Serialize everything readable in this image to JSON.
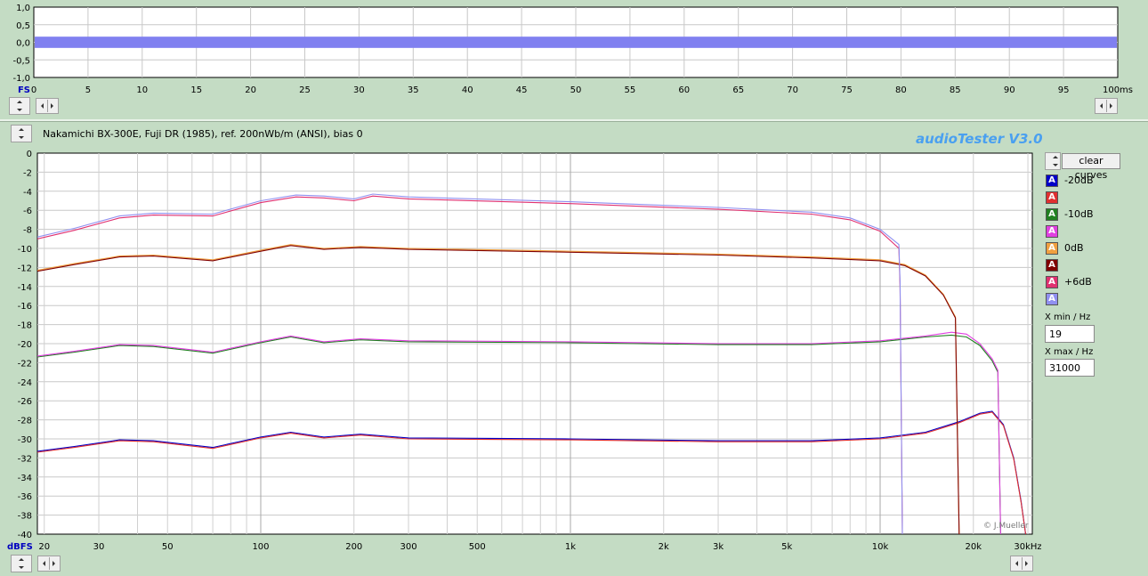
{
  "waveform": {
    "y_labels": [
      "1,0",
      "0,5",
      "0,0",
      "-0,5",
      "-1,0"
    ],
    "y_unit": "FS",
    "x_labels": [
      "0",
      "5",
      "10",
      "15",
      "20",
      "25",
      "30",
      "35",
      "40",
      "45",
      "50",
      "55",
      "60",
      "65",
      "70",
      "75",
      "80",
      "85",
      "90",
      "95",
      "100ms"
    ],
    "amplitude": 0.1,
    "color": "#8080f0"
  },
  "info_text": "Nakamichi BX-300E, Fuji DR (1985), ref. 200nWb/m (ANSI), bias 0",
  "brand": "audioTester  V3.0",
  "copyright": "© J.Mueller",
  "controls": {
    "clear_label": "clear curves",
    "xmin_label": "X min / Hz",
    "xmin_value": "19",
    "xmax_label": "X max / Hz",
    "xmax_value": "31000"
  },
  "legend": [
    {
      "label": "-20dB",
      "color": "#0000c8",
      "glyph": "A"
    },
    {
      "label": "",
      "color": "#e03030",
      "glyph": "A"
    },
    {
      "label": "-10dB",
      "color": "#208020",
      "glyph": "A"
    },
    {
      "label": "",
      "color": "#e040e0",
      "glyph": "A"
    },
    {
      "label": "0dB",
      "color": "#f0a040",
      "glyph": "A"
    },
    {
      "label": "",
      "color": "#800000",
      "glyph": "A"
    },
    {
      "label": "+6dB",
      "color": "#e03070",
      "glyph": "A"
    },
    {
      "label": "",
      "color": "#9090f0",
      "glyph": "A"
    }
  ],
  "chart_data": {
    "type": "line",
    "x_scale": "log",
    "xlim": [
      19,
      31000
    ],
    "ylim": [
      -40,
      0
    ],
    "grid": true,
    "ylabel": "dBFS",
    "xlabel_unit": "kHz",
    "y_ticks": [
      "0",
      "-2",
      "-4",
      "-6",
      "-8",
      "-10",
      "-12",
      "-14",
      "-16",
      "-18",
      "-20",
      "-22",
      "-24",
      "-26",
      "-28",
      "-30",
      "-32",
      "-34",
      "-36",
      "-38",
      "-40"
    ],
    "x_ticks": [
      {
        "v": 20,
        "label": "20"
      },
      {
        "v": 30,
        "label": "30"
      },
      {
        "v": 50,
        "label": "50"
      },
      {
        "v": 100,
        "label": "100"
      },
      {
        "v": 200,
        "label": "200"
      },
      {
        "v": 300,
        "label": "300"
      },
      {
        "v": 500,
        "label": "500"
      },
      {
        "v": 1000,
        "label": "1k"
      },
      {
        "v": 2000,
        "label": "2k"
      },
      {
        "v": 3000,
        "label": "3k"
      },
      {
        "v": 5000,
        "label": "5k"
      },
      {
        "v": 10000,
        "label": "10k"
      },
      {
        "v": 20000,
        "label": "20k"
      },
      {
        "v": 30000,
        "label": "30kHz"
      }
    ],
    "series": [
      {
        "name": "-20dB",
        "color": "#0000c8",
        "points": [
          [
            19,
            -31.3
          ],
          [
            25,
            -30.8
          ],
          [
            35,
            -30.1
          ],
          [
            45,
            -30.2
          ],
          [
            70,
            -30.9
          ],
          [
            100,
            -29.8
          ],
          [
            125,
            -29.3
          ],
          [
            160,
            -29.8
          ],
          [
            210,
            -29.5
          ],
          [
            300,
            -29.9
          ],
          [
            1000,
            -30.0
          ],
          [
            3000,
            -30.2
          ],
          [
            6000,
            -30.2
          ],
          [
            10000,
            -29.9
          ],
          [
            14000,
            -29.3
          ],
          [
            18000,
            -28.2
          ],
          [
            21000,
            -27.3
          ],
          [
            23000,
            -27.1
          ],
          [
            25000,
            -28.5
          ],
          [
            27000,
            -32.0
          ],
          [
            28500,
            -36.5
          ],
          [
            29500,
            -40.0
          ]
        ]
      },
      {
        "name": "",
        "color": "#e03030",
        "points": [
          [
            19,
            -31.4
          ],
          [
            25,
            -30.9
          ],
          [
            35,
            -30.2
          ],
          [
            45,
            -30.3
          ],
          [
            70,
            -31.0
          ],
          [
            100,
            -29.9
          ],
          [
            125,
            -29.4
          ],
          [
            160,
            -29.9
          ],
          [
            210,
            -29.6
          ],
          [
            300,
            -30.0
          ],
          [
            1000,
            -30.1
          ],
          [
            3000,
            -30.3
          ],
          [
            6000,
            -30.3
          ],
          [
            10000,
            -30.0
          ],
          [
            14000,
            -29.4
          ],
          [
            18000,
            -28.3
          ],
          [
            21000,
            -27.4
          ],
          [
            23000,
            -27.2
          ],
          [
            25000,
            -28.6
          ],
          [
            27000,
            -32.1
          ],
          [
            28500,
            -36.6
          ],
          [
            29500,
            -40.0
          ]
        ]
      },
      {
        "name": "-10dB",
        "color": "#208020",
        "points": [
          [
            19,
            -21.4
          ],
          [
            25,
            -20.9
          ],
          [
            35,
            -20.2
          ],
          [
            45,
            -20.3
          ],
          [
            70,
            -21.0
          ],
          [
            100,
            -19.9
          ],
          [
            125,
            -19.3
          ],
          [
            160,
            -19.9
          ],
          [
            210,
            -19.6
          ],
          [
            300,
            -19.8
          ],
          [
            1000,
            -19.9
          ],
          [
            3000,
            -20.1
          ],
          [
            6000,
            -20.1
          ],
          [
            10000,
            -19.8
          ],
          [
            14000,
            -19.3
          ],
          [
            17000,
            -19.1
          ],
          [
            19000,
            -19.3
          ],
          [
            21000,
            -20.2
          ],
          [
            23000,
            -21.8
          ],
          [
            24000,
            -23.0
          ],
          [
            24500,
            -40.0
          ]
        ]
      },
      {
        "name": "",
        "color": "#e040e0",
        "points": [
          [
            19,
            -21.3
          ],
          [
            25,
            -20.8
          ],
          [
            35,
            -20.1
          ],
          [
            45,
            -20.2
          ],
          [
            70,
            -20.9
          ],
          [
            100,
            -19.8
          ],
          [
            125,
            -19.2
          ],
          [
            160,
            -19.8
          ],
          [
            210,
            -19.5
          ],
          [
            300,
            -19.7
          ],
          [
            1000,
            -19.8
          ],
          [
            3000,
            -20.0
          ],
          [
            6000,
            -20.0
          ],
          [
            10000,
            -19.7
          ],
          [
            14000,
            -19.2
          ],
          [
            17000,
            -18.8
          ],
          [
            19000,
            -19.0
          ],
          [
            21000,
            -20.0
          ],
          [
            23000,
            -21.6
          ],
          [
            24000,
            -22.8
          ],
          [
            24500,
            -40.0
          ]
        ]
      },
      {
        "name": "0dB",
        "color": "#f0a040",
        "points": [
          [
            19,
            -12.3
          ],
          [
            25,
            -11.6
          ],
          [
            35,
            -10.8
          ],
          [
            45,
            -10.7
          ],
          [
            70,
            -11.2
          ],
          [
            100,
            -10.2
          ],
          [
            125,
            -9.6
          ],
          [
            160,
            -10.0
          ],
          [
            210,
            -9.8
          ],
          [
            300,
            -10.0
          ],
          [
            1000,
            -10.3
          ],
          [
            3000,
            -10.6
          ],
          [
            6000,
            -10.9
          ],
          [
            10000,
            -11.2
          ],
          [
            12000,
            -11.7
          ],
          [
            14000,
            -12.8
          ],
          [
            16000,
            -14.8
          ],
          [
            17500,
            -17.2
          ],
          [
            18000,
            -40.0
          ]
        ]
      },
      {
        "name": "",
        "color": "#800000",
        "points": [
          [
            19,
            -12.4
          ],
          [
            25,
            -11.7
          ],
          [
            35,
            -10.9
          ],
          [
            45,
            -10.8
          ],
          [
            70,
            -11.3
          ],
          [
            100,
            -10.3
          ],
          [
            125,
            -9.7
          ],
          [
            160,
            -10.1
          ],
          [
            210,
            -9.9
          ],
          [
            300,
            -10.1
          ],
          [
            1000,
            -10.4
          ],
          [
            3000,
            -10.7
          ],
          [
            6000,
            -11.0
          ],
          [
            10000,
            -11.3
          ],
          [
            12000,
            -11.8
          ],
          [
            14000,
            -12.9
          ],
          [
            16000,
            -14.9
          ],
          [
            17500,
            -17.3
          ],
          [
            18000,
            -40.0
          ]
        ]
      },
      {
        "name": "+6dB",
        "color": "#e03070",
        "points": [
          [
            19,
            -9.0
          ],
          [
            25,
            -8.1
          ],
          [
            35,
            -6.8
          ],
          [
            45,
            -6.5
          ],
          [
            70,
            -6.6
          ],
          [
            100,
            -5.2
          ],
          [
            130,
            -4.6
          ],
          [
            160,
            -4.7
          ],
          [
            200,
            -5.0
          ],
          [
            230,
            -4.5
          ],
          [
            300,
            -4.8
          ],
          [
            1000,
            -5.3
          ],
          [
            3000,
            -5.9
          ],
          [
            6000,
            -6.4
          ],
          [
            8000,
            -7.0
          ],
          [
            10000,
            -8.2
          ],
          [
            11500,
            -10.0
          ],
          [
            11600,
            -14.0
          ],
          [
            11800,
            -40.0
          ]
        ]
      },
      {
        "name": "",
        "color": "#9090f0",
        "points": [
          [
            19,
            -8.8
          ],
          [
            25,
            -7.9
          ],
          [
            35,
            -6.6
          ],
          [
            45,
            -6.3
          ],
          [
            70,
            -6.4
          ],
          [
            100,
            -5.0
          ],
          [
            130,
            -4.4
          ],
          [
            160,
            -4.5
          ],
          [
            200,
            -4.8
          ],
          [
            230,
            -4.3
          ],
          [
            300,
            -4.6
          ],
          [
            1000,
            -5.1
          ],
          [
            3000,
            -5.7
          ],
          [
            6000,
            -6.2
          ],
          [
            8000,
            -6.8
          ],
          [
            10000,
            -8.0
          ],
          [
            11500,
            -9.6
          ],
          [
            11600,
            -13.5
          ],
          [
            11800,
            -40.0
          ]
        ]
      }
    ]
  }
}
